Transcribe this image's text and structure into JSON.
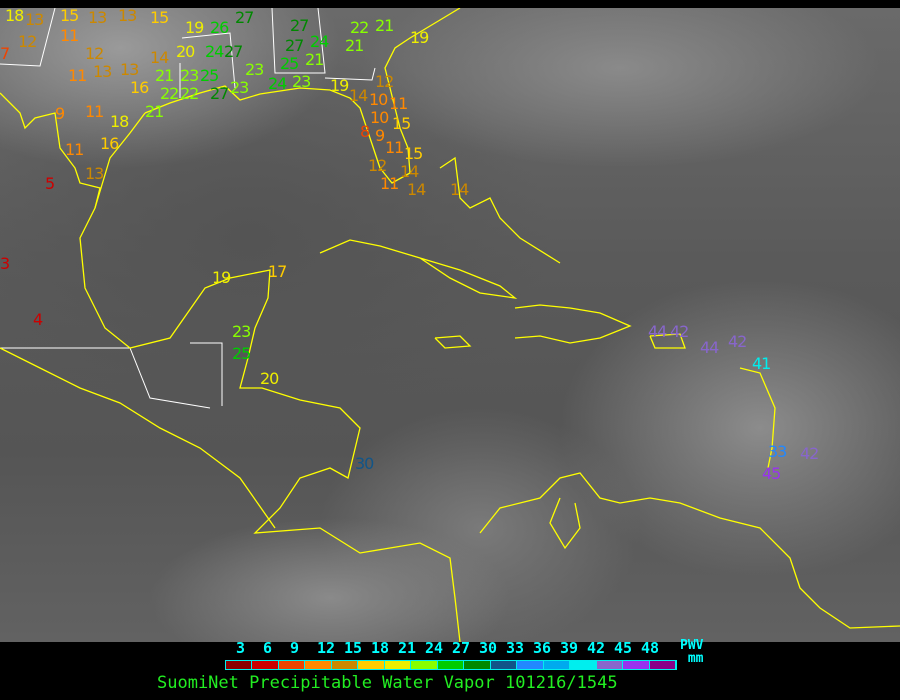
{
  "title": "SuomiNet Precipitable Water Vapor 101216/1545",
  "legend": {
    "ticks": [
      "3",
      "6",
      "9",
      "12",
      "15",
      "18",
      "21",
      "24",
      "27",
      "30",
      "33",
      "36",
      "39",
      "42",
      "45",
      "48"
    ],
    "unit_top": "PWV",
    "unit_bottom": "mm",
    "colors": [
      "#8b0000",
      "#cc0000",
      "#ee4400",
      "#ff8800",
      "#cc8800",
      "#ffcc00",
      "#eeee00",
      "#88ff00",
      "#00cc00",
      "#008800",
      "#115588",
      "#2288ff",
      "#00aaee",
      "#00eeee",
      "#8866cc",
      "#9933ee",
      "#880088"
    ]
  },
  "coastline_color": "#ffff00",
  "border_color": "#ffffff",
  "stations": [
    "18",
    "13",
    "15",
    "13",
    "13",
    "15",
    "19",
    "26",
    "27",
    "27",
    "22",
    "21",
    "19",
    "12",
    "11",
    "21",
    "27",
    "24",
    "7",
    "12",
    "20",
    "24",
    "27",
    "25",
    "21",
    "14",
    "11",
    "13",
    "13",
    "21",
    "23",
    "25",
    "23",
    "16",
    "22",
    "22",
    "27",
    "23",
    "24",
    "23",
    "19",
    "12",
    "14",
    "10",
    "11",
    "9",
    "11",
    "18",
    "21",
    "10",
    "15",
    "8",
    "9",
    "11",
    "16",
    "11",
    "15",
    "12",
    "14",
    "13",
    "11",
    "14",
    "5",
    "14",
    "3",
    "4",
    "19",
    "17",
    "23",
    "25",
    "20",
    "30",
    "44",
    "42",
    "44",
    "42",
    "41",
    "33",
    "42",
    "45"
  ]
}
